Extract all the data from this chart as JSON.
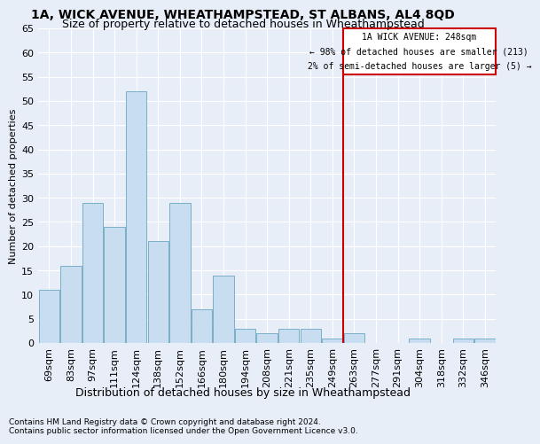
{
  "title": "1A, WICK AVENUE, WHEATHAMPSTEAD, ST ALBANS, AL4 8QD",
  "subtitle": "Size of property relative to detached houses in Wheathampstead",
  "xlabel_bottom": "Distribution of detached houses by size in Wheathampstead",
  "ylabel": "Number of detached properties",
  "footer_line1": "Contains HM Land Registry data © Crown copyright and database right 2024.",
  "footer_line2": "Contains public sector information licensed under the Open Government Licence v3.0.",
  "categories": [
    "69sqm",
    "83sqm",
    "97sqm",
    "111sqm",
    "124sqm",
    "138sqm",
    "152sqm",
    "166sqm",
    "180sqm",
    "194sqm",
    "208sqm",
    "221sqm",
    "235sqm",
    "249sqm",
    "263sqm",
    "277sqm",
    "291sqm",
    "304sqm",
    "318sqm",
    "332sqm",
    "346sqm"
  ],
  "values": [
    11,
    16,
    29,
    24,
    52,
    21,
    29,
    7,
    14,
    3,
    2,
    3,
    3,
    1,
    2,
    0,
    0,
    1,
    0,
    1,
    1
  ],
  "bar_color": "#c8ddf0",
  "bar_edge_color": "#7aafc8",
  "background_color": "#e8eef8",
  "grid_color": "#ffffff",
  "reference_line_index": 13,
  "reference_line_color": "#cc0000",
  "annotation_text_line1": "1A WICK AVENUE: 248sqm",
  "annotation_text_line2": "← 98% of detached houses are smaller (213)",
  "annotation_text_line3": "2% of semi-detached houses are larger (5) →",
  "annotation_box_color": "#cc0000",
  "ylim": [
    0,
    65
  ],
  "yticks": [
    0,
    5,
    10,
    15,
    20,
    25,
    30,
    35,
    40,
    45,
    50,
    55,
    60,
    65
  ],
  "title_fontsize": 10,
  "subtitle_fontsize": 9,
  "ylabel_fontsize": 8,
  "tick_fontsize": 8,
  "xlabel_fontsize": 9,
  "footer_fontsize": 6.5
}
